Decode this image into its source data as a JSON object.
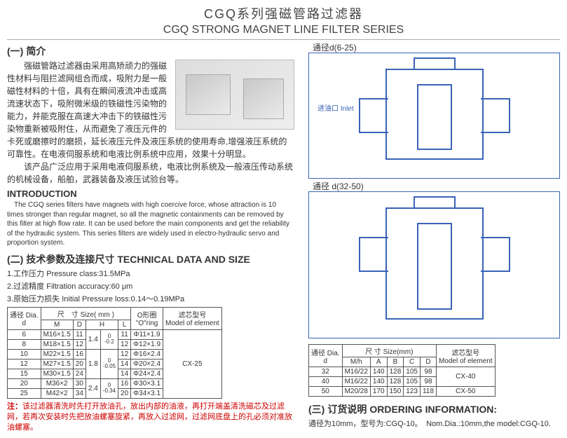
{
  "title": {
    "cn": "CGQ系列强磁管路过滤器",
    "en": "CGQ STRONG MAGNET LINE FILTER SERIES"
  },
  "sec1": {
    "num": "(一)",
    "head": "简介"
  },
  "intro_cn": "　　强磁管路过滤器由采用高矫顽力的强磁性材料与阻拦滤网组合而成，吸附力是一般磁性材料的十倍，具有在瞬间液流冲击或高流速状态下，吸附微米级的铁磁性污染物的能力，并能克服在高速大冲击下的铁磁性污染物重新被吸附住，从而避免了液压元件的卡死或磨擦时的磨损，延长液压元件及液压系统的使用寿命,增强液压系统的可靠性。在电液伺服系统和电液比例系统中应用，效果十分明显。\n　　该产品广泛应用于采用电液伺服系统，电液比例系统及一般液压传动系统的机械设备，船舶，武器装备及液压试验台等。",
  "intro_en_head": "INTRODUCTION",
  "intro_en": "　The CGQ series filters have magnets with high coercive force, whose attraction is 10 times stronger than regular magnet, so all the magnetic containments can be removed by this filter at high flow rate. It can be used before the main components and get the reliability of the hydraulic system. This series filters are widely used in electro-hydraulic servo and proportion system.",
  "sec2": {
    "num": "(二)",
    "head_cn": "技术参数及连接尺寸",
    "head_en": "TECHNICAL DATA AND SIZE"
  },
  "params": {
    "p1": "1.工作压力 Pressure class:31.5MPa",
    "p2": "2.过滤精度 Filtration accuracy:60 μm",
    "p3": "3.原始压力损失 Initial Pressure loss:0.14～0.19MPa"
  },
  "table1": {
    "headers": {
      "dia_cn": "通径",
      "dia_en": "Dia.",
      "d": "d",
      "size_cn": "尺　寸",
      "size_en": "Size( mm )",
      "M": "M",
      "D": "D",
      "H": "H",
      "L": "L",
      "oring_cn": "O形圈",
      "oring_en": "\"O\"ring",
      "elem_cn": "滤芯型号",
      "elem_en": "Model of element"
    },
    "rows": [
      {
        "d": "6",
        "M": "M16×1.5",
        "D": "11",
        "H": "1.4",
        "Htol": "0\n-0.2",
        "L": "11",
        "o": "Φ11×1.9",
        "e": "CX-25"
      },
      {
        "d": "8",
        "M": "M18×1.5",
        "D": "12",
        "H": "",
        "Htol": "",
        "L": "12",
        "o": "Φ12×1.9",
        "e": ""
      },
      {
        "d": "10",
        "M": "M22×1.5",
        "D": "16",
        "H": "1.8",
        "Htol": "0\n-0.05",
        "L": "12",
        "o": "Φ16×2.4",
        "e": ""
      },
      {
        "d": "12",
        "M": "M27×1.5",
        "D": "20",
        "H": "",
        "Htol": "",
        "L": "14",
        "o": "Φ20×2.4",
        "e": ""
      },
      {
        "d": "15",
        "M": "M30×1.5",
        "D": "24",
        "H": "",
        "Htol": "",
        "L": "14",
        "o": "Φ24×2.4",
        "e": ""
      },
      {
        "d": "20",
        "M": "M36×2",
        "D": "30",
        "H": "2.4",
        "Htol": "0\n-0.34",
        "L": "16",
        "o": "Φ30×3.1",
        "e": ""
      },
      {
        "d": "25",
        "M": "M42×2",
        "D": "34",
        "H": "",
        "Htol": "",
        "L": "20",
        "o": "Φ34×3.1",
        "e": ""
      }
    ]
  },
  "note": {
    "label": "注：",
    "text": "该过滤器清洗时先打开放油孔，放出内部的油液，再打开端盖清洗磁芯及过滤网，若再次安装时先把放油螺塞旋紧，再放入过滤网，过滤网底盘上的孔必须对准放油螺塞。"
  },
  "diag1_label": "通径d(6-25)",
  "diag1_inlet": "进油口 Inlet",
  "diag2_label": "通径 d(32-50)",
  "table2": {
    "headers": {
      "dia_cn": "通径",
      "dia_en": "Dia.",
      "d": "d",
      "size_cn": "尺 寸",
      "size_en": "Size(mm)",
      "Mh": "M/h",
      "A": "A",
      "B": "B",
      "C": "C",
      "D": "D",
      "elem_cn": "滤芯型号",
      "elem_en": "Model of element"
    },
    "rows": [
      {
        "d": "32",
        "Mh": "M16/22",
        "A": "140",
        "B": "128",
        "C": "105",
        "D": "98",
        "e": "CX-40"
      },
      {
        "d": "40",
        "Mh": "M16/22",
        "A": "140",
        "B": "128",
        "C": "105",
        "D": "98",
        "e": ""
      },
      {
        "d": "50",
        "Mh": "M20/28",
        "A": "170",
        "B": "150",
        "C": "123",
        "D": "118",
        "e": "CX-50"
      }
    ]
  },
  "sec3": {
    "num": "(三)",
    "head_cn": "订货说明",
    "head_en": "ORDERING INFORMATION:"
  },
  "ordering_ex": "通径为10mm，型号为:CGQ-10。　Nom.Dia.:10mm,the model:CGQ-10."
}
